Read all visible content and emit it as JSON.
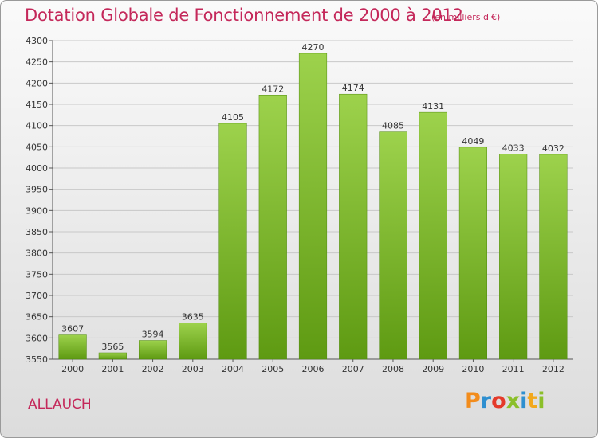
{
  "header": {
    "title": "Dotation Globale de Fonctionnement de 2000 à 2012",
    "subtitle": "(en milliers d'€)"
  },
  "commune": "ALLAUCH",
  "logo": {
    "text": "Proxiti",
    "letters": [
      {
        "ch": "P",
        "color": "#f28c1c"
      },
      {
        "ch": "r",
        "color": "#2e8fd0"
      },
      {
        "ch": "o",
        "color": "#e43a2a"
      },
      {
        "ch": "x",
        "color": "#8bbf2a"
      },
      {
        "ch": "i",
        "color": "#2e8fd0"
      },
      {
        "ch": "t",
        "color": "#f2a81c"
      },
      {
        "ch": "i",
        "color": "#8bbf2a"
      }
    ]
  },
  "colors": {
    "bar_top": "#9dd24c",
    "bar_bottom": "#5e9a12",
    "title": "#c4285a",
    "grid": "#c8c8c8"
  },
  "chart_data": {
    "type": "bar",
    "title": "Dotation Globale de Fonctionnement de 2000 à 2012",
    "subtitle": "(en milliers d'€)",
    "categories": [
      "2000",
      "2001",
      "2002",
      "2003",
      "2004",
      "2005",
      "2006",
      "2007",
      "2008",
      "2009",
      "2010",
      "2011",
      "2012"
    ],
    "values": [
      3607,
      3565,
      3594,
      3635,
      4105,
      4172,
      4270,
      4174,
      4085,
      4131,
      4049,
      4033,
      4032
    ],
    "ylim": [
      3550,
      4300
    ],
    "yticks": [
      3550,
      3600,
      3650,
      3700,
      3750,
      3800,
      3850,
      3900,
      3950,
      4000,
      4050,
      4100,
      4150,
      4200,
      4250,
      4300
    ],
    "grid": true,
    "data_labels": true
  }
}
